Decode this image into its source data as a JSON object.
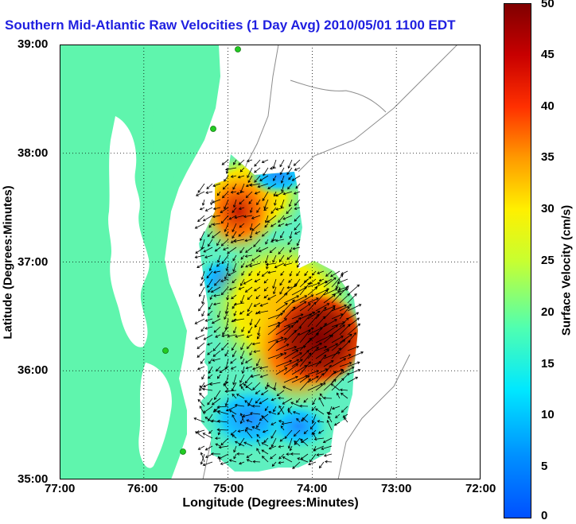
{
  "title": "Southern Mid-Atlantic Raw Velocities (1 Day Avg) 2010/05/01 1100 EDT",
  "xlabel": "Longitude (Degrees:Minutes)",
  "ylabel": "Latitude (Degrees:Minutes)",
  "x_ticks": [
    "77:00",
    "76:00",
    "75:00",
    "74:00",
    "73:00",
    "72:00"
  ],
  "y_ticks": [
    "39:00",
    "38:00",
    "37:00",
    "36:00",
    "35:00"
  ],
  "colorbar": {
    "label": "Surface Velocity (cm/s)",
    "ticks": [
      "50",
      "45",
      "40",
      "35",
      "30",
      "25",
      "20",
      "15",
      "10",
      "5",
      "0"
    ],
    "range": [
      0,
      50
    ]
  },
  "colors": {
    "land": "#5ff5ad",
    "title": "#1f1fe0",
    "bathymetry": "#8c8c8c",
    "station": "#22cc22"
  },
  "chart_data": {
    "type": "heatmap",
    "title": "Southern Mid-Atlantic Raw Velocities (1 Day Avg) 2010/05/01 1100 EDT",
    "xlabel": "Longitude (Degrees:Minutes)",
    "ylabel": "Latitude (Degrees:Minutes)",
    "xlim": [
      -77,
      -72
    ],
    "ylim": [
      35,
      39
    ],
    "grid": true,
    "colorbar_range": [
      0,
      50
    ],
    "colorbar_label": "Surface Velocity (cm/s)",
    "speed_regions": [
      {
        "lon": -74.1,
        "lat": 36.2,
        "speed": 48
      },
      {
        "lon": -74.5,
        "lat": 36.0,
        "speed": 35
      },
      {
        "lon": -75.0,
        "lat": 37.3,
        "speed": 38
      },
      {
        "lon": -74.6,
        "lat": 37.2,
        "speed": 25
      },
      {
        "lon": -74.6,
        "lat": 37.75,
        "speed": 10
      },
      {
        "lon": -74.9,
        "lat": 35.5,
        "speed": 10
      },
      {
        "lon": -74.6,
        "lat": 35.25,
        "speed": 20
      }
    ]
  }
}
